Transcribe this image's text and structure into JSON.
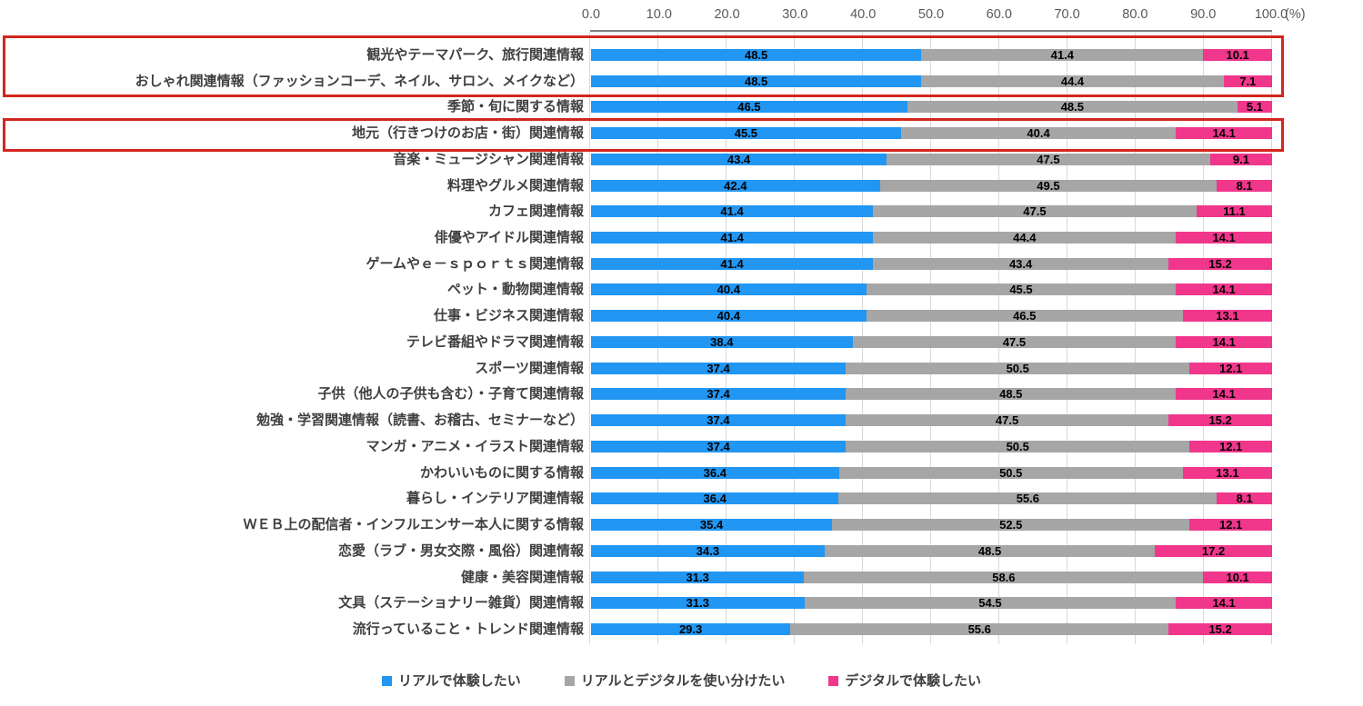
{
  "chart_data": {
    "type": "bar",
    "orientation": "horizontal",
    "stacked": true,
    "unit": "(%)",
    "axis": {
      "min": 0,
      "max": 100,
      "step": 10,
      "tick_labels": [
        "0.0",
        "10.0",
        "20.0",
        "30.0",
        "40.0",
        "50.0",
        "60.0",
        "70.0",
        "80.0",
        "90.0",
        "100.0"
      ]
    },
    "categories": [
      "観光やテーマパーク、旅行関連情報",
      "おしゃれ関連情報（ファッションコーデ、ネイル、サロン、メイクなど）",
      "季節・旬に関する情報",
      "地元（行きつけのお店・街）関連情報",
      "音楽・ミュージシャン関連情報",
      "料理やグルメ関連情報",
      "カフェ関連情報",
      "俳優やアイドル関連情報",
      "ゲームやｅ－ｓｐｏｒｔｓ関連情報",
      "ペット・動物関連情報",
      "仕事・ビジネス関連情報",
      "テレビ番組やドラマ関連情報",
      "スポーツ関連情報",
      "子供（他人の子供も含む）・子育て関連情報",
      "勉強・学習関連情報（読書、お稽古、セミナーなど）",
      "マンガ・アニメ・イラスト関連情報",
      "かわいいものに関する情報",
      "暮らし・インテリア関連情報",
      "ＷＥＢ上の配信者・インフルエンサー本人に関する情報",
      "恋愛（ラブ・男女交際・風俗）関連情報",
      "健康・美容関連情報",
      "文具（ステーショナリー雑貨）関連情報",
      "流行っていること・トレンド関連情報"
    ],
    "series": [
      {
        "name": "リアルで体験したい",
        "color": "#2196f3",
        "values": [
          48.5,
          48.5,
          46.5,
          45.5,
          43.4,
          42.4,
          41.4,
          41.4,
          41.4,
          40.4,
          40.4,
          38.4,
          37.4,
          37.4,
          37.4,
          37.4,
          36.4,
          36.4,
          35.4,
          34.3,
          31.3,
          31.3,
          29.3
        ]
      },
      {
        "name": "リアルとデジタルを使い分けたい",
        "color": "#a6a6a6",
        "values": [
          41.4,
          44.4,
          48.5,
          40.4,
          47.5,
          49.5,
          47.5,
          44.4,
          43.4,
          45.5,
          46.5,
          47.5,
          50.5,
          48.5,
          47.5,
          50.5,
          50.5,
          55.6,
          52.5,
          48.5,
          58.6,
          54.5,
          55.6
        ]
      },
      {
        "name": "デジタルで体験したい",
        "color": "#f0378c",
        "values": [
          10.1,
          7.1,
          5.1,
          14.1,
          9.1,
          8.1,
          11.1,
          14.1,
          15.2,
          14.1,
          13.1,
          14.1,
          12.1,
          14.1,
          15.2,
          12.1,
          13.1,
          8.1,
          12.1,
          17.2,
          10.1,
          14.1,
          15.2
        ]
      }
    ],
    "legend_position": "bottom",
    "grid": true,
    "annotations": {
      "highlight_color": "#d2261f",
      "boxes": [
        {
          "label": "highlighted-rows-1-2",
          "rows": [
            0,
            1
          ]
        },
        {
          "label": "highlighted-row-4",
          "rows": [
            3
          ]
        }
      ]
    }
  },
  "colors": {
    "gridline": "#d9d9d9",
    "axis_line": "#7f7f7f",
    "tick_text": "#595959",
    "category_text": "#3f3f3f",
    "data_label_text": "#000000",
    "highlight_border": "#d2261f"
  }
}
